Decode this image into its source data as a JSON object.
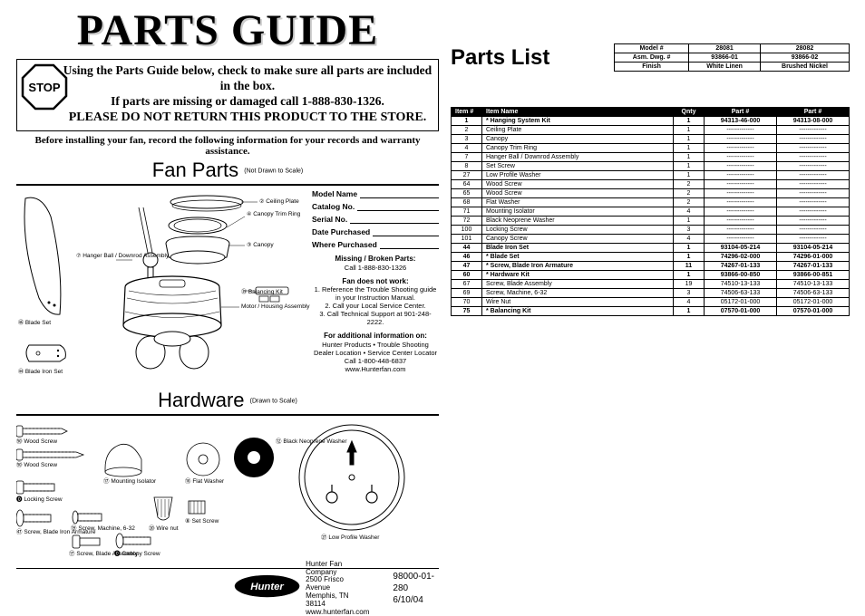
{
  "title": "PARTS GUIDE",
  "stop_box": {
    "line1": "Using the Parts Guide below, check to make sure all parts are included in the box.",
    "line2": "If parts are missing or damaged call 1-888-830-1326.",
    "line3": "PLEASE DO NOT RETURN THIS PRODUCT TO THE STORE."
  },
  "before_installing": "Before installing your fan, record the following information for your records and warranty assistance.",
  "sections": {
    "fan_parts": "Fan Parts",
    "fan_parts_sub": "(Not Drawn to Scale)",
    "hardware": "Hardware",
    "hardware_sub": "(Drawn to Scale)"
  },
  "form_fields": [
    "Model Name",
    "Catalog No.",
    "Serial No.",
    "Date Purchased",
    "Where Purchased"
  ],
  "info_blocks": {
    "missing_hdr": "Missing / Broken Parts:",
    "missing_txt": "Call 1-888-830-1326",
    "notwork_hdr": "Fan does not work:",
    "notwork_1": "1. Reference the Trouble Shooting guide in your Instruction Manual.",
    "notwork_2": "2. Call your  Local Service Center.",
    "notwork_3": "3. Call Technical Support at 901-248-2222.",
    "addl_hdr": "For additional information on:",
    "addl_1": "Hunter Products  •  Trouble Shooting",
    "addl_2": "Dealer Location  •  Service Center Locator",
    "addl_3": "Call 1-800-448-6837",
    "addl_4": "www.Hunterfan.com"
  },
  "fan_part_labels": {
    "ceiling_plate": {
      "num": "2",
      "name": "Ceiling Plate"
    },
    "trim_ring": {
      "num": "4",
      "name": "Canopy Trim Ring"
    },
    "canopy": {
      "num": "3",
      "name": "Canopy"
    },
    "hanger_ball": {
      "num": "7",
      "name": "Hanger Ball / Downrod Assembly"
    },
    "motor": {
      "name": "Motor / Housing Assembly"
    },
    "balancing": {
      "num": "75",
      "name": "Balancing Kit"
    },
    "blade_set": {
      "num": "46",
      "name": "Blade Set"
    },
    "blade_iron": {
      "num": "44",
      "name": "Blade Iron Set"
    }
  },
  "hardware_labels": {
    "wood_screw_64": {
      "num": "64",
      "name": "Wood Screw"
    },
    "wood_screw_65": {
      "num": "65",
      "name": "Wood Screw"
    },
    "locking_screw": {
      "num": "100",
      "name": "Locking Screw"
    },
    "blade_iron_screw": {
      "num": "47",
      "name": "Screw, Blade Iron Armature"
    },
    "mounting_isolator": {
      "num": "71",
      "name": "Mounting Isolator"
    },
    "machine_screw": {
      "num": "69",
      "name": "Screw, Machine, 6-32"
    },
    "blade_assy": {
      "num": "67",
      "name": "Screw, Blade Assembly"
    },
    "wire_nut": {
      "num": "70",
      "name": "Wire nut"
    },
    "canopy_screw": {
      "num": "101",
      "name": "Canopy Screw"
    },
    "flat_washer": {
      "num": "68",
      "name": "Flat Washer"
    },
    "set_screw": {
      "num": "8",
      "name": "Set Screw"
    },
    "neoprene": {
      "num": "72",
      "name": "Black Neoprene Washer"
    },
    "low_profile": {
      "num": "27",
      "name": "Low Profile Washer"
    },
    "hw60": {
      "num": "60"
    }
  },
  "footer": {
    "company": "Hunter Fan Company",
    "addr1": "2500 Frisco Avenue",
    "addr2": "Memphis, TN 38114",
    "web": "www.hunterfan.com",
    "docnum": "98000-01-280",
    "date": "6/10/04"
  },
  "parts_list_title": "Parts List",
  "top_table": {
    "headers": [
      "Model #",
      "Asm. Dwg. #",
      "Finish"
    ],
    "cols": [
      {
        "model": "28081",
        "asm": "93866-01",
        "finish": "White Linen"
      },
      {
        "model": "28082",
        "asm": "93866-02",
        "finish": "Brushed Nickel"
      }
    ]
  },
  "main_table": {
    "headers": [
      "Item #",
      "Item Name",
      "Qnty",
      "Part #",
      "Part #"
    ],
    "rows": [
      {
        "item": "1",
        "name": "Hanging System Kit",
        "qty": "1",
        "p1": "94313-46-000",
        "p2": "94313-08-000",
        "star": true,
        "bold": true
      },
      {
        "item": "2",
        "name": "Ceiling Plate",
        "qty": "1",
        "p1": "-------------",
        "p2": "-------------"
      },
      {
        "item": "3",
        "name": "Canopy",
        "qty": "1",
        "p1": "-------------",
        "p2": "-------------"
      },
      {
        "item": "4",
        "name": "Canopy Trim Ring",
        "qty": "1",
        "p1": "-------------",
        "p2": "-------------"
      },
      {
        "item": "7",
        "name": "Hanger Ball / Downrod Assembly",
        "qty": "1",
        "p1": "-------------",
        "p2": "-------------"
      },
      {
        "item": "8",
        "name": "Set Screw",
        "qty": "1",
        "p1": "-------------",
        "p2": "-------------"
      },
      {
        "item": "27",
        "name": "Low Profile Washer",
        "qty": "1",
        "p1": "-------------",
        "p2": "-------------"
      },
      {
        "item": "64",
        "name": "Wood Screw",
        "qty": "2",
        "p1": "-------------",
        "p2": "-------------"
      },
      {
        "item": "65",
        "name": "Wood Screw",
        "qty": "2",
        "p1": "-------------",
        "p2": "-------------"
      },
      {
        "item": "68",
        "name": "Flat Washer",
        "qty": "2",
        "p1": "-------------",
        "p2": "-------------"
      },
      {
        "item": "71",
        "name": "Mounting Isolator",
        "qty": "4",
        "p1": "-------------",
        "p2": "-------------"
      },
      {
        "item": "72",
        "name": "Black Neoprene Washer",
        "qty": "1",
        "p1": "-------------",
        "p2": "-------------"
      },
      {
        "item": "100",
        "name": "Locking Screw",
        "qty": "3",
        "p1": "-------------",
        "p2": "-------------"
      },
      {
        "item": "101",
        "name": "Canopy Screw",
        "qty": "4",
        "p1": "-------------",
        "p2": "-------------"
      },
      {
        "item": "44",
        "name": "Blade Iron Set",
        "qty": "1",
        "p1": "93104-05-214",
        "p2": "93104-05-214",
        "bold": true
      },
      {
        "item": "46",
        "name": "Blade Set",
        "qty": "1",
        "p1": "74296-02-000",
        "p2": "74296-01-000",
        "star": true,
        "bold": true
      },
      {
        "item": "47",
        "name": "Screw, Blade Iron Armature",
        "qty": "11",
        "p1": "74267-01-133",
        "p2": "74267-01-133",
        "star": true,
        "bold": true
      },
      {
        "item": "60",
        "name": "Hardware Kit",
        "qty": "1",
        "p1": "93866-00-850",
        "p2": "93866-00-851",
        "star": true,
        "bold": true
      },
      {
        "item": "67",
        "name": "Screw, Blade Assembly",
        "qty": "19",
        "p1": "74510-13-133",
        "p2": "74510-13-133"
      },
      {
        "item": "69",
        "name": "Screw, Machine, 6-32",
        "qty": "3",
        "p1": "74506-63-133",
        "p2": "74506-63-133"
      },
      {
        "item": "70",
        "name": "Wire Nut",
        "qty": "4",
        "p1": "05172-01-000",
        "p2": "05172-01-000"
      },
      {
        "item": "75",
        "name": "Balancing Kit",
        "qty": "1",
        "p1": "07570-01-000",
        "p2": "07570-01-000",
        "star": true,
        "bold": true
      }
    ]
  },
  "colors": {
    "black": "#000000",
    "white": "#ffffff",
    "gray": "#cccccc"
  }
}
